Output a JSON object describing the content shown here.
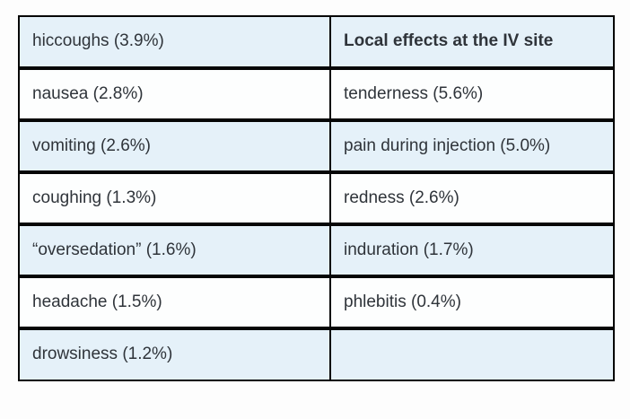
{
  "table": {
    "right_column_header": "Local effects at the IV site",
    "rows": [
      {
        "left": "hiccoughs (3.9%)",
        "right": "Local effects at the IV site"
      },
      {
        "left": "nausea (2.8%)",
        "right": "tenderness (5.6%)"
      },
      {
        "left": "vomiting (2.6%)",
        "right": "pain during injection (5.0%)"
      },
      {
        "left": "coughing (1.3%)",
        "right": "redness (2.6%)"
      },
      {
        "left": "“oversedation” (1.6%)",
        "right": "induration (1.7%)"
      },
      {
        "left": "headache (1.5%)",
        "right": "phlebitis (0.4%)"
      },
      {
        "left": "drowsiness (1.2%)",
        "right": ""
      }
    ],
    "colors": {
      "shaded_row_bg": "#e5f1f9",
      "plain_row_bg": "#fdfefe",
      "border": "#060606",
      "text": "#2f343a",
      "page_bg": "#fdfdfd"
    }
  }
}
